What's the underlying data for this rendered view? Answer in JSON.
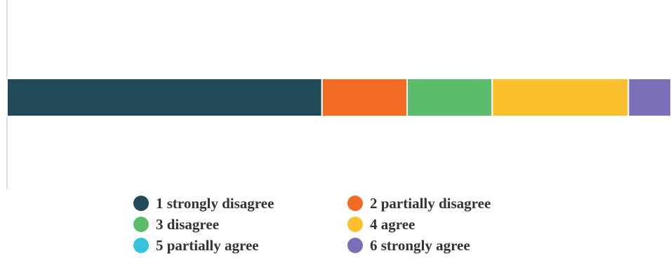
{
  "chart_data": {
    "type": "bar",
    "orientation": "horizontal",
    "stacked": true,
    "categories": [
      ""
    ],
    "series": [
      {
        "name": "1 strongly disagree",
        "values": [
          37
        ],
        "color": "#214a59"
      },
      {
        "name": "2 partially disagree",
        "values": [
          10
        ],
        "color": "#f26a24"
      },
      {
        "name": "3 disagree",
        "values": [
          10
        ],
        "color": "#5bbd6b"
      },
      {
        "name": "4 agree",
        "values": [
          16
        ],
        "color": "#fcc02e"
      },
      {
        "name": "5 partially agree",
        "values": [
          0
        ],
        "color": "#36c3dc"
      },
      {
        "name": "6 strongly agree",
        "values": [
          5
        ],
        "color": "#7b70b7"
      }
    ],
    "xlim": [
      0,
      78
    ],
    "grid": false,
    "legend_position": "bottom"
  }
}
